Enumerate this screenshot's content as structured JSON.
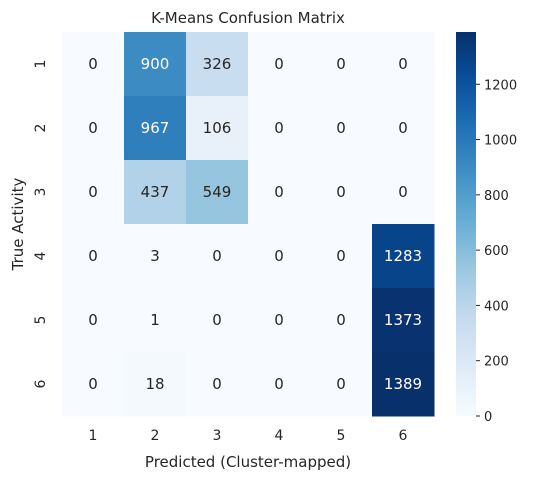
{
  "chart_data": {
    "type": "heatmap",
    "title": "K-Means Confusion Matrix",
    "xlabel": "Predicted (Cluster-mapped)",
    "ylabel": "True Activity",
    "x_categories": [
      "1",
      "2",
      "3",
      "4",
      "5",
      "6"
    ],
    "y_categories": [
      "1",
      "2",
      "3",
      "4",
      "5",
      "6"
    ],
    "values": [
      [
        0,
        900,
        326,
        0,
        0,
        0
      ],
      [
        0,
        967,
        106,
        0,
        0,
        0
      ],
      [
        0,
        437,
        549,
        0,
        0,
        0
      ],
      [
        0,
        3,
        0,
        0,
        0,
        1283
      ],
      [
        0,
        1,
        0,
        0,
        0,
        1373
      ],
      [
        0,
        18,
        0,
        0,
        0,
        1389
      ]
    ],
    "colormap": "Blues",
    "vmin": 0,
    "vmax": 1389,
    "colorbar_ticks": [
      0,
      200,
      400,
      600,
      800,
      1000,
      1200
    ],
    "colorbar_labels": [
      "0",
      "200",
      "400",
      "600",
      "800",
      "1000",
      "1200"
    ],
    "grid": false,
    "legend": "colorbar-right"
  }
}
